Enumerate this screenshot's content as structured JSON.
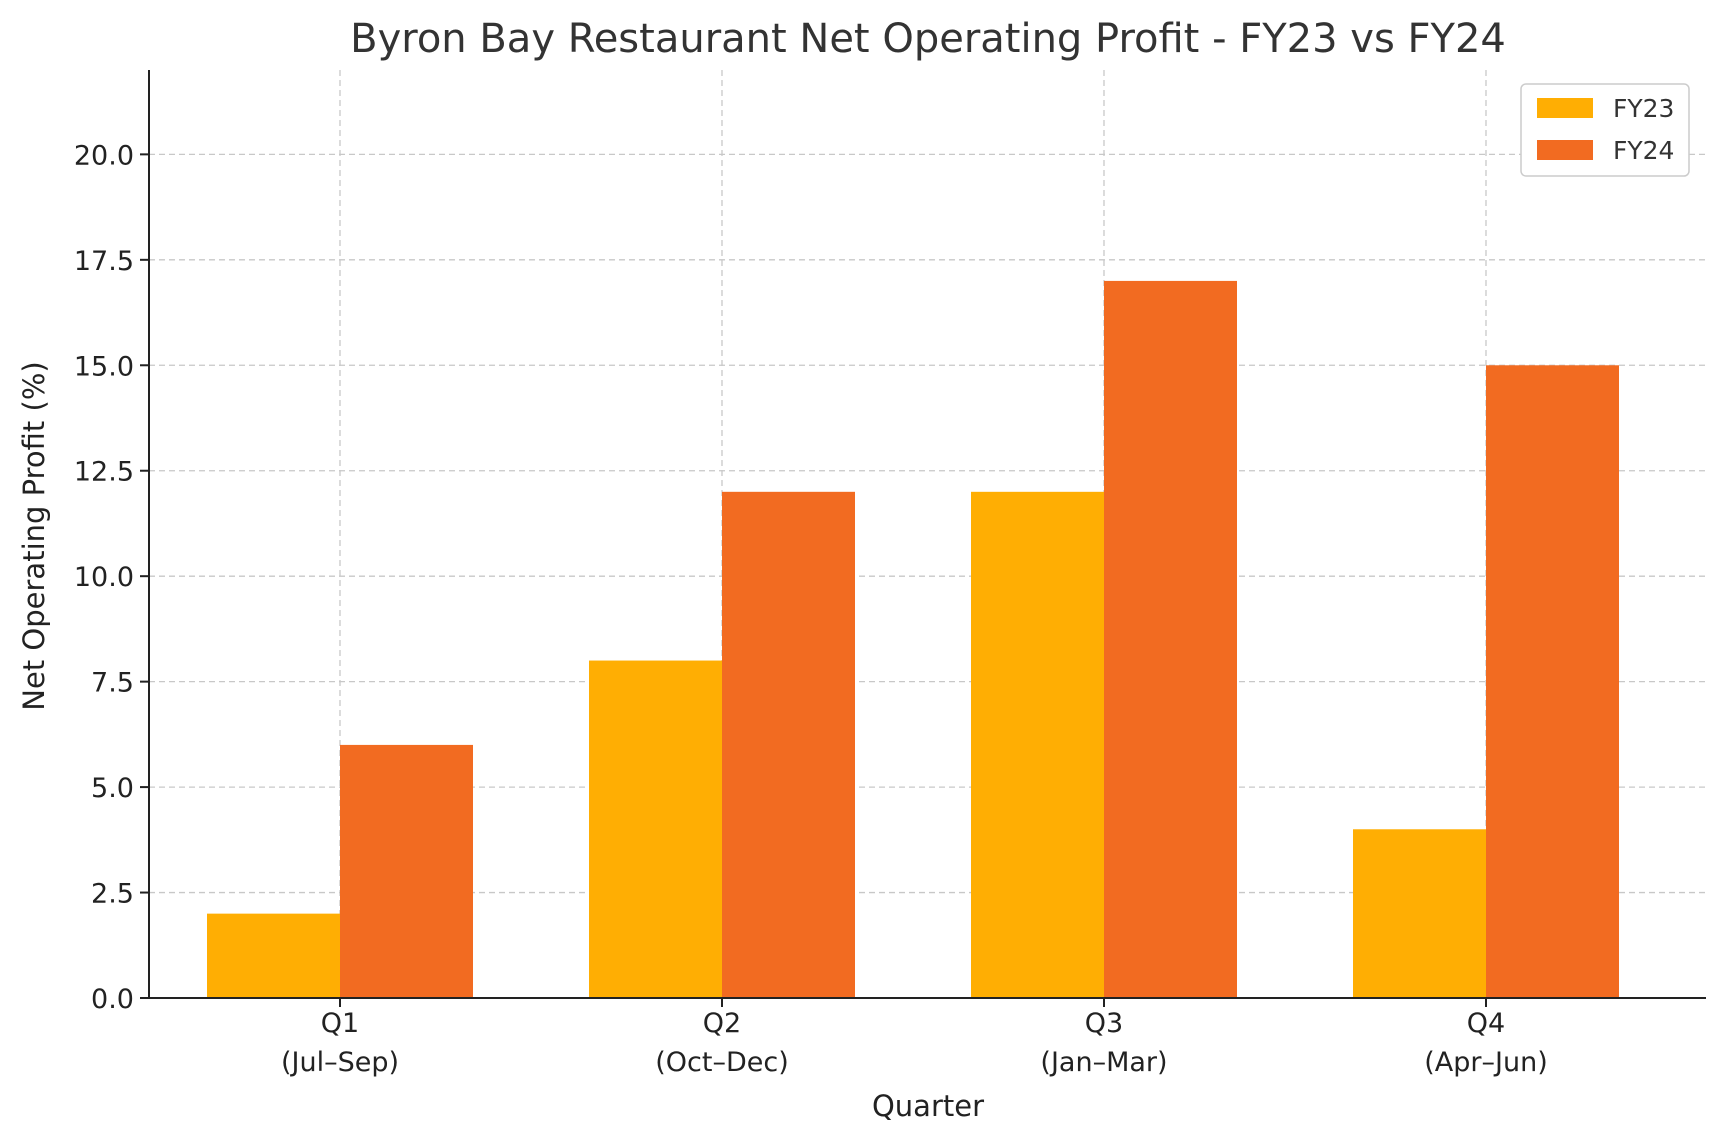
{
  "chart_data": {
    "type": "bar",
    "title": "Byron Bay Restaurant Net Operating Profit - FY23 vs FY24",
    "xlabel": "Quarter",
    "ylabel": "Net Operating Profit (%)",
    "categories": [
      [
        "Q1",
        "(Jul–Sep)"
      ],
      [
        "Q2",
        "(Oct–Dec)"
      ],
      [
        "Q3",
        "(Jan–Mar)"
      ],
      [
        "Q4",
        "(Apr–Jun)"
      ]
    ],
    "series": [
      {
        "name": "FY23",
        "color": "#FFAE03",
        "values": [
          2,
          8,
          12,
          4
        ]
      },
      {
        "name": "FY24",
        "color": "#F26B21",
        "values": [
          6,
          12,
          17,
          15
        ]
      }
    ],
    "yticks": [
      "0.0",
      "2.5",
      "5.0",
      "7.5",
      "10.0",
      "12.5",
      "15.0",
      "17.5",
      "20.0"
    ],
    "ylim": [
      0,
      22
    ],
    "grid": true,
    "legend_position": "top-right"
  }
}
